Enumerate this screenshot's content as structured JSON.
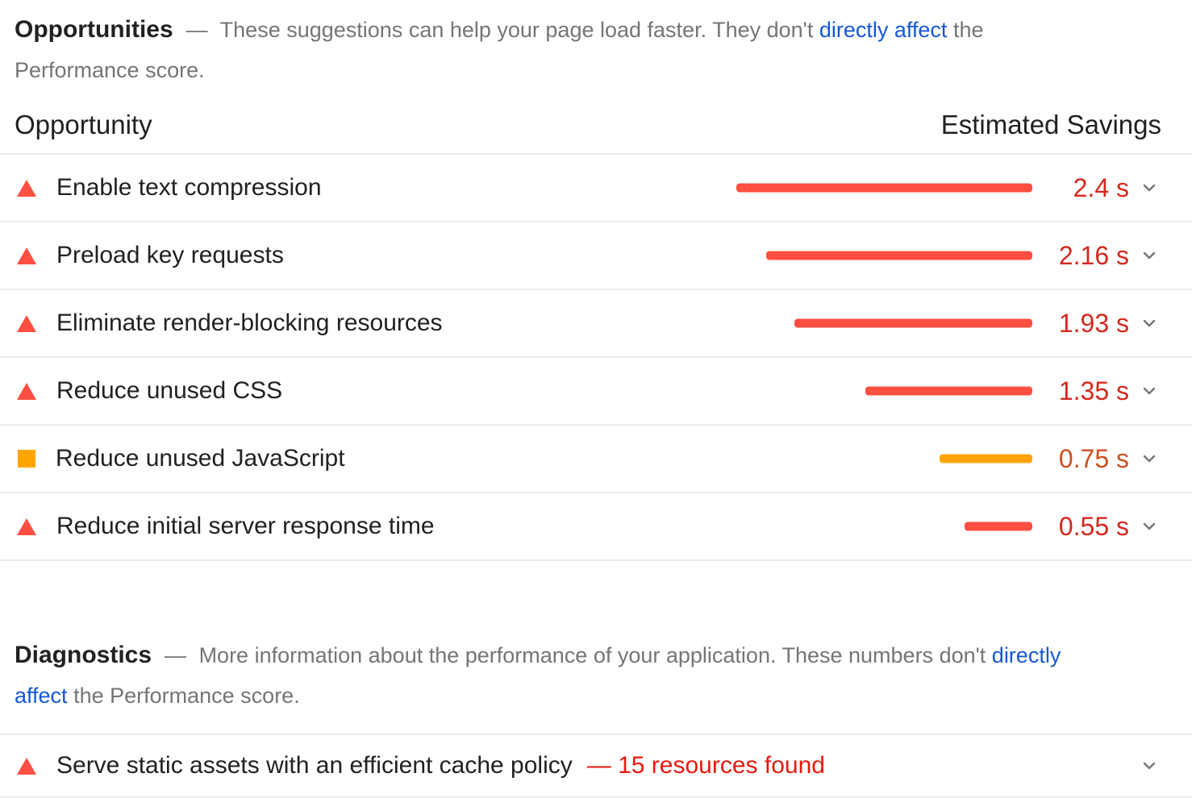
{
  "colors": {
    "fail": "#ff4e42",
    "average": "#ffa400",
    "fail_text": "#d7271d",
    "average_text": "#cd501e",
    "diagnostic_alert_text": "#e8190d",
    "link": "#1558d6",
    "description_text": "#757575",
    "heading_text": "#212121",
    "divider": "#ebebeb",
    "chevron": "#757575"
  },
  "opportunities": {
    "title": "Opportunities",
    "separator": "—",
    "description": {
      "before_link": "These suggestions can help your page load faster. They don't",
      "link": "directly affect",
      "after_link_line1": "the",
      "line2": "Performance score."
    },
    "table": {
      "col_opportunity": "Opportunity",
      "col_savings": "Estimated Savings"
    },
    "rows": [
      {
        "label": "Enable text compression",
        "savings_label": "2.4 s",
        "savings_seconds": 2.4,
        "severity": "fail"
      },
      {
        "label": "Preload key requests",
        "savings_label": "2.16 s",
        "savings_seconds": 2.16,
        "severity": "fail"
      },
      {
        "label": "Eliminate render-blocking resources",
        "savings_label": "1.93 s",
        "savings_seconds": 1.93,
        "severity": "fail"
      },
      {
        "label": "Reduce unused CSS",
        "savings_label": "1.35 s",
        "savings_seconds": 1.35,
        "severity": "fail"
      },
      {
        "label": "Reduce unused JavaScript",
        "savings_label": "0.75 s",
        "savings_seconds": 0.75,
        "severity": "average"
      },
      {
        "label": "Reduce initial server response time",
        "savings_label": "0.55 s",
        "savings_seconds": 0.55,
        "severity": "fail"
      }
    ]
  },
  "diagnostics": {
    "title": "Diagnostics",
    "separator": "—",
    "description": {
      "before_link": "More information about the performance of your application. These numbers don't",
      "link_line1": "directly",
      "link_line2": "affect",
      "after_link": "the Performance score."
    },
    "rows": [
      {
        "label": "Serve static assets with an efficient cache policy",
        "detail": "— 15 resources found",
        "severity": "fail"
      }
    ]
  }
}
